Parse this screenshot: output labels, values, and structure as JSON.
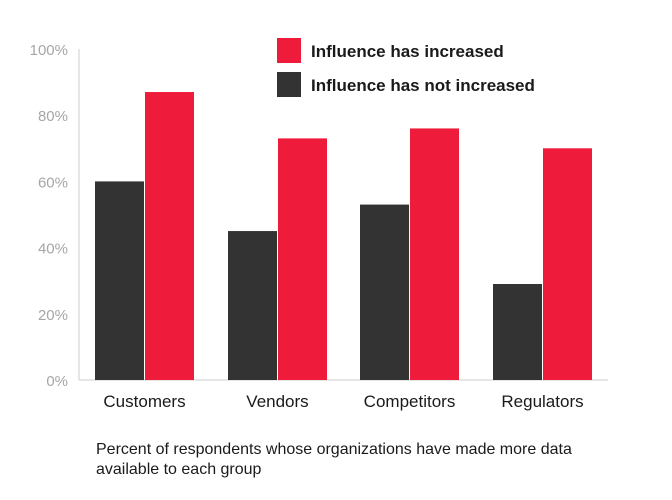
{
  "chart_data": {
    "type": "bar",
    "categories": [
      "Customers",
      "Vendors",
      "Competitors",
      "Regulators"
    ],
    "series": [
      {
        "name": "Influence has not increased",
        "color": "#333333",
        "values": [
          60,
          45,
          53,
          29
        ]
      },
      {
        "name": "Influence has increased",
        "color": "#ee1c3a",
        "values": [
          87,
          73,
          76,
          70
        ]
      }
    ],
    "legend_order": [
      "Influence has increased",
      "Influence has not increased"
    ],
    "legend_position": "top-right",
    "ylim": [
      0,
      100
    ],
    "yticks": [
      "0%",
      "20%",
      "40%",
      "60%",
      "80%",
      "100%"
    ],
    "grid": false,
    "xlabel": "",
    "ylabel": ""
  },
  "caption": "Percent of respondents whose organizations have made more data available to each group"
}
